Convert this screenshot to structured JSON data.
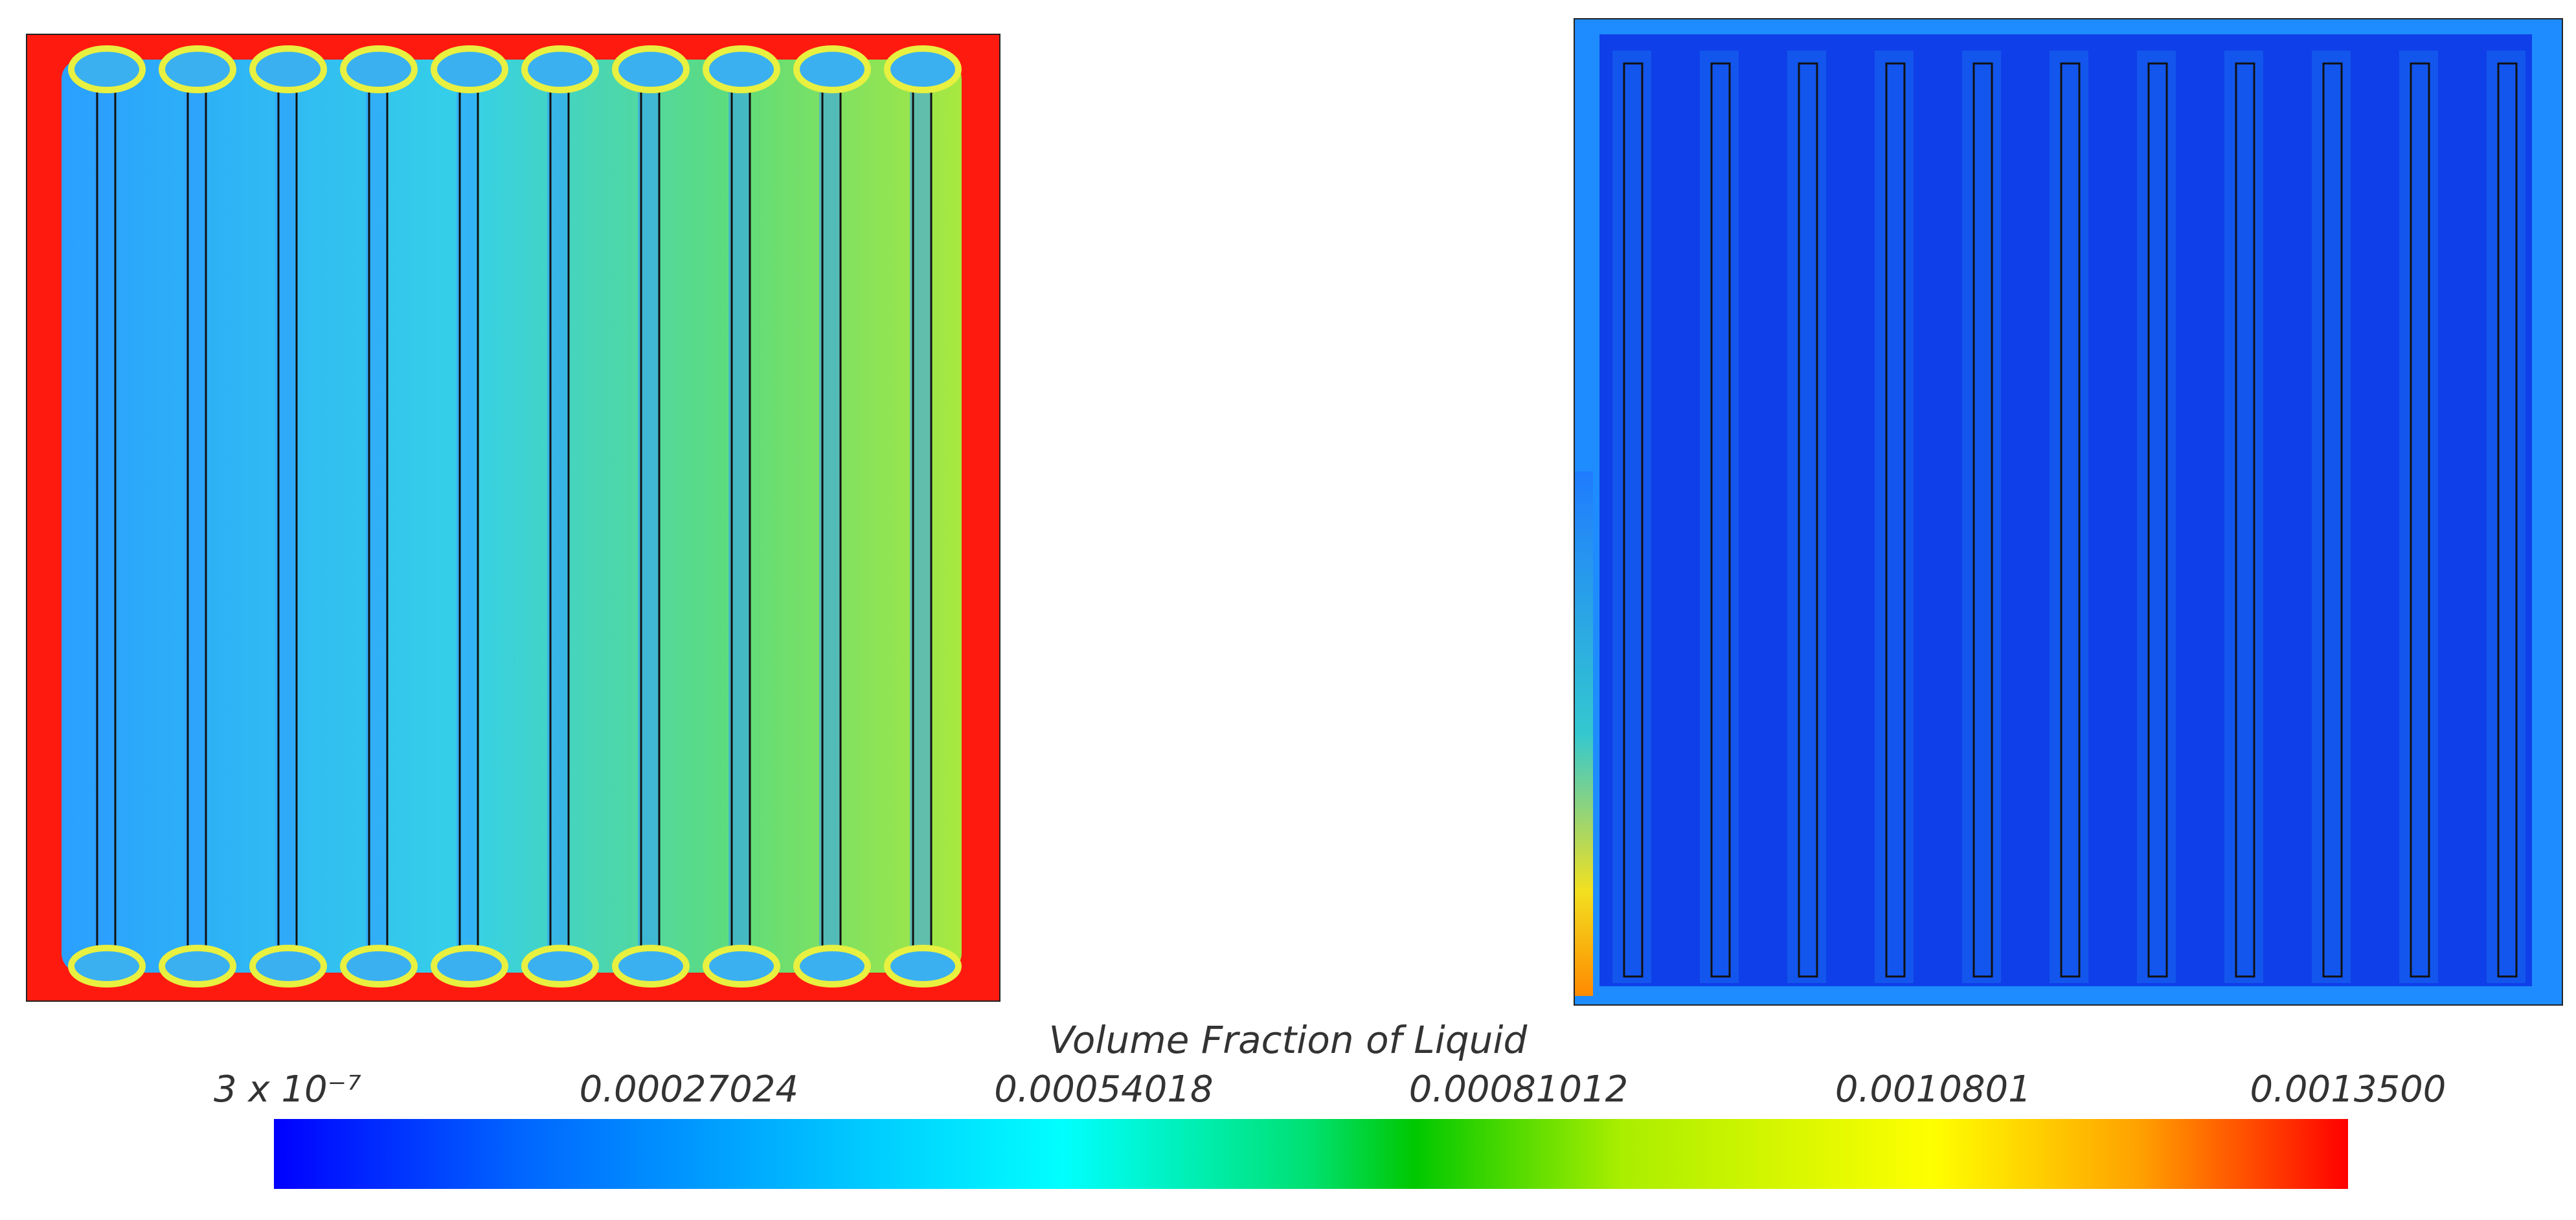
{
  "legend": {
    "title": "Volume Fraction of Liquid",
    "ticks": [
      "3 x 10⁻⁷",
      "0.00027024",
      "0.00054018",
      "0.00081012",
      "0.0010801",
      "0.0013500"
    ]
  },
  "colors": {
    "low": "#0000ff",
    "mid": "#00c800",
    "high": "#ff0000"
  }
}
